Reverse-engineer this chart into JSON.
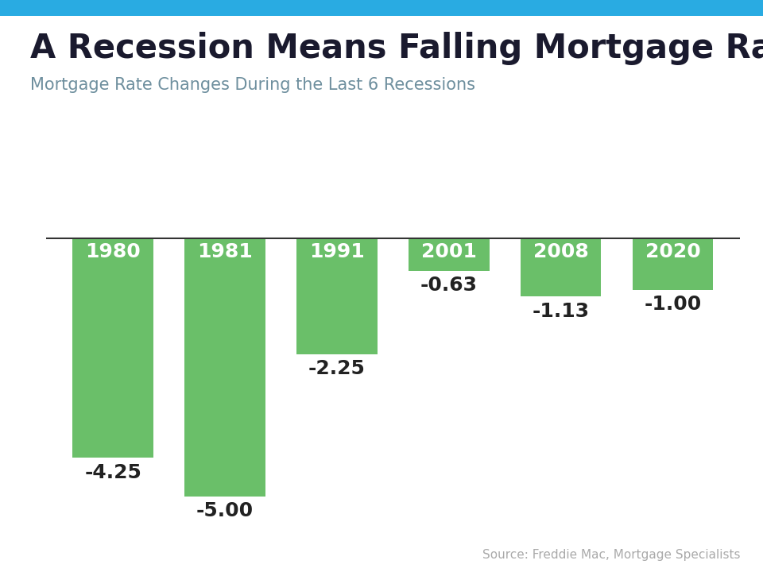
{
  "title": "A Recession Means Falling Mortgage Rates",
  "subtitle": "Mortgage Rate Changes During the Last 6 Recessions",
  "source": "Source: Freddie Mac, Mortgage Specialists",
  "categories": [
    "1980",
    "1981",
    "1991",
    "2001",
    "2008",
    "2020"
  ],
  "values": [
    -4.25,
    -5.0,
    -2.25,
    -0.63,
    -1.13,
    -1.0
  ],
  "bar_color": "#6abf69",
  "bar_label_color_inside": "#ffffff",
  "bar_label_color_outside": "#222222",
  "title_color": "#1a1a2e",
  "subtitle_color": "#6e8f9e",
  "source_color": "#aaaaaa",
  "background_color": "#ffffff",
  "top_strip_color": "#29abe2",
  "title_fontsize": 30,
  "subtitle_fontsize": 15,
  "source_fontsize": 11,
  "year_label_fontsize": 18,
  "value_label_fontsize": 18,
  "ylim": [
    -5.8,
    0.4
  ],
  "bar_width": 0.72
}
